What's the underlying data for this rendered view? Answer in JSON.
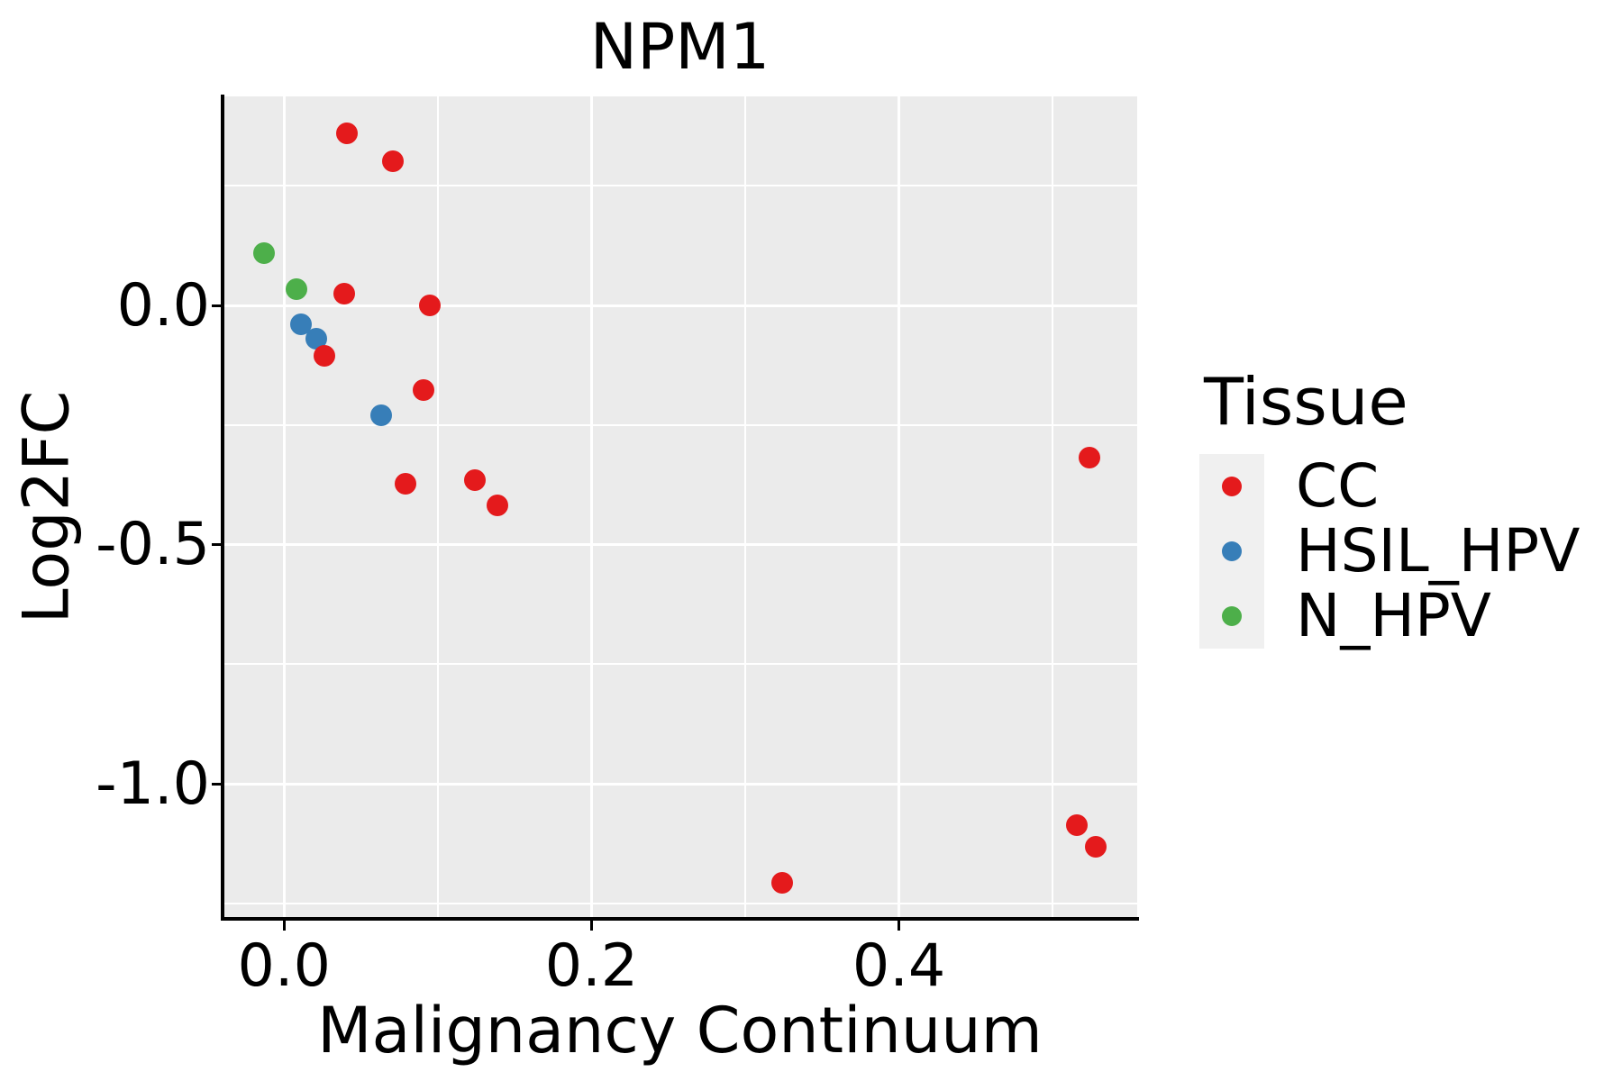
{
  "title": "NPM1",
  "chart_data": {
    "type": "scatter",
    "title": "NPM1",
    "xlabel": "Malignancy Continuum",
    "ylabel": "Log2FC",
    "xlim": [
      -0.04,
      0.555
    ],
    "ylim": [
      -1.282,
      0.437
    ],
    "x_major_ticks": [
      0.0,
      0.2,
      0.4
    ],
    "x_tick_labels": [
      "0.0",
      "0.2",
      "0.4"
    ],
    "x_minor_ticks": [
      0.1,
      0.3,
      0.5
    ],
    "y_major_ticks": [
      0.0,
      -0.5,
      -1.0
    ],
    "y_tick_labels": [
      "0.0",
      "-0.5",
      "-1.0"
    ],
    "y_minor_ticks": [
      0.25,
      -0.25,
      -0.75,
      -1.25
    ],
    "grid": true,
    "legend_position": "right",
    "series": [
      {
        "name": "CC",
        "color": "#E41A1C",
        "points": [
          [
            0.041,
            0.36
          ],
          [
            0.071,
            0.301
          ],
          [
            0.039,
            0.025
          ],
          [
            0.095,
            0.0
          ],
          [
            0.026,
            -0.105
          ],
          [
            0.091,
            -0.176
          ],
          [
            0.079,
            -0.372
          ],
          [
            0.124,
            -0.365
          ],
          [
            0.139,
            -0.418
          ],
          [
            0.524,
            -0.318
          ],
          [
            0.516,
            -1.087
          ],
          [
            0.528,
            -1.132
          ],
          [
            0.324,
            -1.206
          ]
        ]
      },
      {
        "name": "HSIL_HPV",
        "color": "#377EB8",
        "points": [
          [
            0.011,
            -0.039
          ],
          [
            0.021,
            -0.069
          ],
          [
            0.063,
            -0.229
          ]
        ]
      },
      {
        "name": "N_HPV",
        "color": "#4DAF4A",
        "points": [
          [
            -0.013,
            0.11
          ],
          [
            0.008,
            0.034
          ]
        ]
      }
    ]
  },
  "legend": {
    "title": "Tissue",
    "entries": [
      {
        "label": "CC",
        "color": "#E41A1C"
      },
      {
        "label": "HSIL_HPV",
        "color": "#377EB8"
      },
      {
        "label": "N_HPV",
        "color": "#4DAF4A"
      }
    ]
  },
  "colors": {
    "panel_bg": "#EBEBEB",
    "grid": "#FFFFFF",
    "axis": "#000000",
    "text": "#000000",
    "legend_key_bg": "#F0F0F0"
  }
}
